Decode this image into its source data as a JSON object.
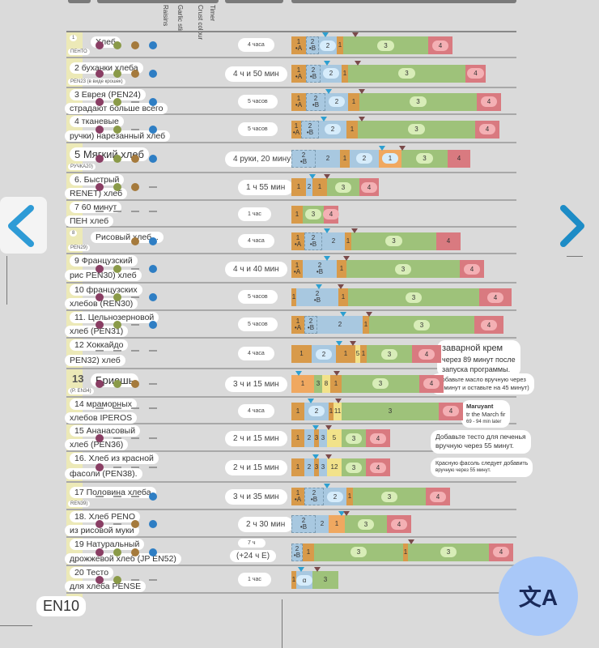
{
  "header": {
    "columns": [
      "Raisins",
      "Garlic stir",
      "Crust colour",
      "Timer"
    ]
  },
  "colors": {
    "raisins": "#8a3e64",
    "garlic": "#8a9a48",
    "crust": "#a57a3c",
    "timer": "#2e7ec4",
    "knead": "#d89a4a",
    "rise": "#a8c8e0",
    "bake": "#9ec27a",
    "keep_warm": "#d97a80",
    "add": "#f2e28a"
  },
  "rows": [
    {
      "n": "1",
      "l1": "Хлеб",
      "l2": "",
      "code": "ПЕНТО",
      "time": "4 часа",
      "dots": [
        "r",
        "g",
        "c",
        "t"
      ]
    },
    {
      "n": "",
      "l1": "2 буханки хлеба",
      "l2": "",
      "code": "PEN23 (в виде крошек)",
      "time": "4 ч и 50 мин",
      "dots": [
        "r",
        "g",
        "c",
        "t"
      ]
    },
    {
      "n": "",
      "l1": "3 Еврея (PEN24)",
      "l2": "страдают больше всего",
      "code": "",
      "time": "5 часов",
      "dots": [
        "r",
        "g",
        "-",
        "t"
      ]
    },
    {
      "n": "",
      "l1": "4 тканевые",
      "l2": "ручки) нарезанный хлеб",
      "code": "",
      "time": "5 часов",
      "dots": [
        "r",
        "g",
        "-",
        "t"
      ]
    },
    {
      "n": "",
      "l1": "5 Мягкий хлеб",
      "l2": "",
      "code": "РУЧКА20)",
      "time": "4 руки, 20 минут",
      "dots": [
        "r",
        "g",
        "c",
        "t"
      ]
    },
    {
      "n": "",
      "l1": "6. Быстрый",
      "l2": "RENET) хлеб",
      "code": "",
      "time": "1 ч 55 мин",
      "dots": [
        "r",
        "g",
        "c",
        "-"
      ]
    },
    {
      "n": "",
      "l1": "7 60 минут",
      "l2": "ПЕН хлеб",
      "code": "",
      "time": "1 час",
      "dots": [
        "-",
        "-",
        "-",
        "-"
      ]
    },
    {
      "n": "8",
      "l1": "Рисовый хлеб...",
      "l2": "",
      "code": "PEN29)",
      "time": "4 часа",
      "dots": [
        "",
        "",
        "c",
        "t"
      ]
    },
    {
      "n": "",
      "l1": "9 Французский",
      "l2": "рис PEN30) хлеб",
      "code": "",
      "time": "4 ч и 40 мин",
      "dots": [
        "r",
        "g",
        "-",
        "t"
      ]
    },
    {
      "n": "",
      "l1": "10 французских",
      "l2": "хлебов (REN30)",
      "code": "",
      "time": "5 часов",
      "dots": [
        "r",
        "g",
        "-",
        "t"
      ]
    },
    {
      "n": "",
      "l1": "11. Цельнозерновой",
      "l2": "хлеб (PEN31)",
      "code": "",
      "time": "5 часов",
      "dots": [
        "r",
        "g",
        "-",
        "t"
      ]
    },
    {
      "n": "",
      "l1": "12 Хоккайдо",
      "l2": "PEN32) хлеб",
      "code": "",
      "time": "4 часа",
      "dots": [
        "-",
        "-",
        "-",
        "-"
      ]
    },
    {
      "n": "13",
      "l1": "Бриошь",
      "l2": "",
      "code": "(P. EN34)",
      "time": "3 ч и 15 мин",
      "dots": [
        "r",
        "g",
        "c",
        "-"
      ]
    },
    {
      "n": "",
      "l1": "14 мраморных",
      "l2": "хлебов IPEROS",
      "code": "",
      "time": "4 часа",
      "dots": [
        "-",
        "-",
        "-",
        "-"
      ]
    },
    {
      "n": "",
      "l1": "15 Ананасовый",
      "l2": "хлеб (PEN36)",
      "code": "",
      "time": "2 ч и 15 мин",
      "dots": [
        "r",
        "-",
        "-",
        "-"
      ]
    },
    {
      "n": "",
      "l1": "16. Хлеб из красной",
      "l2": "фасоли (PEN38).",
      "code": "",
      "time": "2 ч и 15 мин",
      "dots": [
        "r",
        "-",
        "-",
        "-"
      ]
    },
    {
      "n": "",
      "l1": "17 Половина хлеба",
      "l2": "",
      "code": "REN39)",
      "time": "3 ч и 35 мин",
      "dots": [
        "-",
        "-",
        "-",
        "t"
      ]
    },
    {
      "n": "",
      "l1": "18. Хлеб PENO",
      "l2": "из рисовой муки",
      "code": "",
      "time": "2 ч 30 мин",
      "dots": [
        "r",
        "-",
        "c",
        "t"
      ]
    },
    {
      "n": "",
      "l1": "19 Натуральный",
      "l2": "дрожжевой хлеб (JP EN52)",
      "code": "",
      "time": "7 ч",
      "time2": "(+24 ч Е)",
      "dots": [
        "r",
        "g",
        "c",
        "t"
      ]
    },
    {
      "n": "",
      "l1": "20 Тесто",
      "l2": "для хлеба PENSE",
      "code": "",
      "time": "1 час",
      "dots": [
        "r",
        "g",
        "-",
        "-"
      ]
    }
  ],
  "notes": {
    "n12": [
      "заварной крем",
      "через 89 минут после",
      "запуска программы."
    ],
    "n13": [
      "(Добавьте масло вручную через",
      "35 минут и оставьте на 45 минут)"
    ],
    "n14": [
      "Maruyant",
      "tr the March fir",
      "69 - 94 min later"
    ],
    "n15": [
      "Добавьте тесто для печенья",
      "вручную через 55 минут."
    ],
    "n16": [
      "Красную фасоль следует добавить",
      "вручную через 55 минут."
    ]
  },
  "footer": {
    "label": "EN10"
  },
  "nav": {
    "prev": "previous-page",
    "next": "next-page"
  },
  "fab": {
    "icon": "translate-icon",
    "glyph": "文A"
  }
}
